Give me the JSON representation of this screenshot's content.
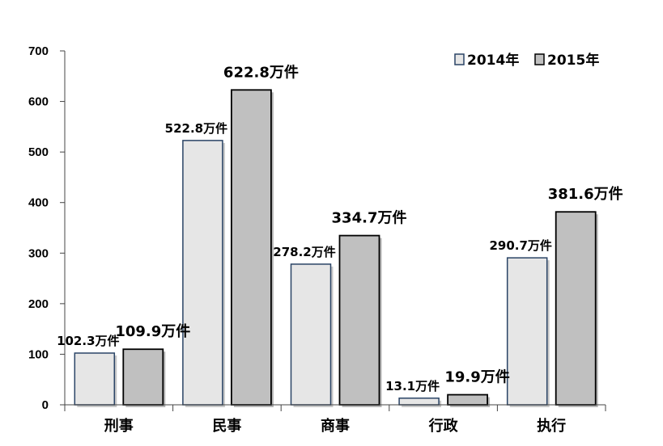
{
  "chart_data": {
    "type": "bar",
    "categories": [
      "刑事",
      "民事",
      "商事",
      "行政",
      "执行"
    ],
    "series": [
      {
        "name": "2014年",
        "values": [
          102.3,
          522.8,
          278.2,
          13.1,
          290.7
        ],
        "labels": [
          "102.3万件",
          "522.8万件",
          "278.2万件",
          "13.1万件",
          "290.7万件"
        ],
        "color": "#e6e6e6",
        "border": "#2a4466"
      },
      {
        "name": "2015年",
        "values": [
          109.9,
          622.8,
          334.7,
          19.9,
          381.6
        ],
        "labels": [
          "109.9万件",
          "622.8万件",
          "334.7万件",
          "19.9万件",
          "381.6万件"
        ],
        "color": "#c0c0c0",
        "border": "#000000"
      }
    ],
    "yticks": [
      0,
      100,
      200,
      300,
      400,
      500,
      600,
      700
    ],
    "ylim": [
      0,
      700
    ],
    "grid": false,
    "legend_position": "top-right"
  }
}
